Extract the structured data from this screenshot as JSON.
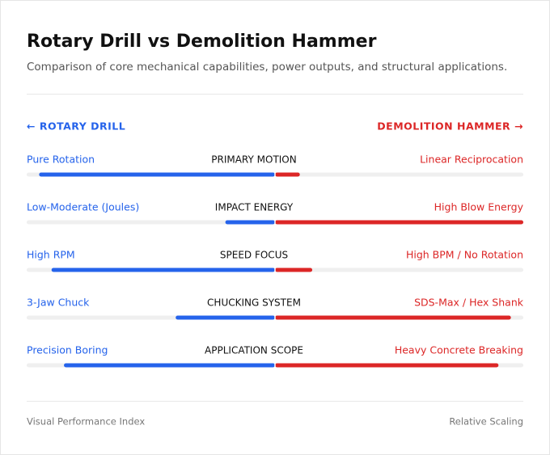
{
  "chart_data": {
    "type": "diverging-bar",
    "title": "Rotary Drill vs Demolition Hammer",
    "subtitle": "Comparison of core mechanical capabilities, power outputs, and structural applications.",
    "categories": [
      "PRIMARY MOTION",
      "IMPACT ENERGY",
      "SPEED FOCUS",
      "CHUCKING SYSTEM",
      "APPLICATION SCOPE"
    ],
    "series": [
      {
        "name": "← ROTARY DRILL",
        "color": "#2563eb",
        "side": "left",
        "labels": [
          "Pure Rotation",
          "Low-Moderate (Joules)",
          "High RPM",
          "3-Jaw Chuck",
          "Precision Boring"
        ],
        "values": [
          95,
          20,
          90,
          40,
          85
        ]
      },
      {
        "name": "DEMOLITION HAMMER →",
        "color": "#dc2626",
        "side": "right",
        "labels": [
          "Linear Reciprocation",
          "High Blow Energy",
          "High BPM / No Rotation",
          "SDS-Max / Hex Shank",
          "Heavy Concrete Breaking"
        ],
        "values": [
          10,
          100,
          15,
          95,
          90
        ]
      }
    ],
    "xlim": [
      0,
      100
    ],
    "footer_left": "Visual Performance Index",
    "footer_right": "Relative Scaling"
  }
}
